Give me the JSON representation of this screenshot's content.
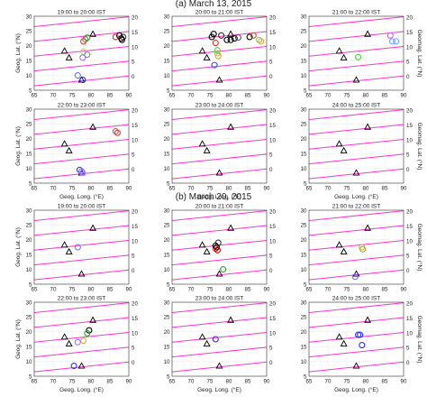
{
  "sections": [
    {
      "title": "(a) March 13, 2015"
    },
    {
      "title": "(b) March 20, 2015"
    }
  ],
  "chart_data": {
    "type": "scatter",
    "xlabel": "Geog. Long. (°E)",
    "ylabel": "Geog. Lat. (°N)",
    "y2label": "Geomag. Lat. (°N)",
    "xlim": [
      65,
      90
    ],
    "ylim": [
      5,
      30
    ],
    "xticks": [
      65,
      70,
      75,
      80,
      85,
      90
    ],
    "yticks": [
      5,
      10,
      15,
      20,
      25,
      30
    ],
    "y2ticks": [
      0,
      5,
      10,
      15,
      20
    ],
    "grid": true,
    "geomag_lines": {
      "color": "#ff33cc",
      "lines": [
        {
          "label": 0,
          "x": [
            65,
            90
          ],
          "y": [
            6.5,
            9.8
          ]
        },
        {
          "label": 5,
          "x": [
            65,
            90
          ],
          "y": [
            11.5,
            14.8
          ]
        },
        {
          "label": 10,
          "x": [
            65,
            90
          ],
          "y": [
            16.5,
            19.8
          ]
        },
        {
          "label": 15,
          "x": [
            65,
            90
          ],
          "y": [
            21.5,
            24.8
          ]
        },
        {
          "label": 20,
          "x": [
            65,
            90
          ],
          "y": [
            26.5,
            29.8
          ]
        }
      ]
    },
    "stations": [
      {
        "x": 80.5,
        "y": 24.0
      },
      {
        "x": 73.0,
        "y": 18.3
      },
      {
        "x": 74.2,
        "y": 16.0
      },
      {
        "x": 77.5,
        "y": 8.5
      }
    ],
    "panels": [
      {
        "section": 0,
        "title": "19:00 to 20:00 IST",
        "points": [
          {
            "x": 78.0,
            "y": 21.5,
            "c": "#e03030"
          },
          {
            "x": 78.5,
            "y": 22.2,
            "c": "#a07040"
          },
          {
            "x": 79.0,
            "y": 22.8,
            "c": "#2aa02a"
          },
          {
            "x": 78.0,
            "y": 18.0,
            "c": "#a0e060"
          },
          {
            "x": 79.0,
            "y": 17.0,
            "c": "#60a060"
          },
          {
            "x": 77.8,
            "y": 16.0,
            "c": "#a070ff"
          },
          {
            "x": 76.5,
            "y": 10.0,
            "c": "#7070ff"
          },
          {
            "x": 77.8,
            "y": 8.5,
            "c": "#2020ff"
          },
          {
            "x": 88.0,
            "y": 22.5,
            "c": "#000000"
          },
          {
            "x": 88.5,
            "y": 23.0,
            "c": "#333333"
          },
          {
            "x": 87.5,
            "y": 23.5,
            "c": "#000000"
          },
          {
            "x": 86.5,
            "y": 23.0,
            "c": "#cc3030"
          },
          {
            "x": 88.2,
            "y": 22.0,
            "c": "#000000"
          }
        ]
      },
      {
        "section": 0,
        "title": "20:00 to 21:00 IST",
        "points": [
          {
            "x": 75.5,
            "y": 23.0,
            "c": "#000000"
          },
          {
            "x": 76.0,
            "y": 24.0,
            "c": "#000000"
          },
          {
            "x": 78.0,
            "y": 23.5,
            "c": "#333333"
          },
          {
            "x": 79.5,
            "y": 22.0,
            "c": "#000000"
          },
          {
            "x": 80.5,
            "y": 22.0,
            "c": "#000000"
          },
          {
            "x": 81.5,
            "y": 22.5,
            "c": "#000000"
          },
          {
            "x": 82.5,
            "y": 22.8,
            "c": "#555555"
          },
          {
            "x": 76.5,
            "y": 21.0,
            "c": "#e03030"
          },
          {
            "x": 77.0,
            "y": 17.5,
            "c": "#a0d040"
          },
          {
            "x": 77.2,
            "y": 16.5,
            "c": "#e0a040"
          },
          {
            "x": 77.0,
            "y": 18.5,
            "c": "#70c070"
          },
          {
            "x": 76.2,
            "y": 13.5,
            "c": "#3050e0"
          },
          {
            "x": 85.5,
            "y": 23.0,
            "c": "#000000"
          },
          {
            "x": 86.5,
            "y": 23.5,
            "c": "#a06030"
          },
          {
            "x": 88.0,
            "y": 22.0,
            "c": "#80c060"
          },
          {
            "x": 88.5,
            "y": 21.5,
            "c": "#f0a030"
          }
        ]
      },
      {
        "section": 0,
        "title": "21:00 to 22:00 IST",
        "points": [
          {
            "x": 88.0,
            "y": 21.5,
            "c": "#70a0ff"
          },
          {
            "x": 87.0,
            "y": 21.5,
            "c": "#70a0ff"
          },
          {
            "x": 86.5,
            "y": 23.5,
            "c": "#b070ff"
          },
          {
            "x": 78.0,
            "y": 16.2,
            "c": "#40d040"
          }
        ]
      },
      {
        "section": 0,
        "title": "22:00 to 23:00 IST",
        "points": [
          {
            "x": 87.0,
            "y": 22.0,
            "c": "#e03030"
          },
          {
            "x": 86.5,
            "y": 22.5,
            "c": "#e05050"
          },
          {
            "x": 77.0,
            "y": 9.5,
            "c": "#3030ff"
          },
          {
            "x": 77.5,
            "y": 9.0,
            "c": "#7070ff"
          },
          {
            "x": 77.8,
            "y": 8.5,
            "c": "#a070ff"
          }
        ]
      },
      {
        "section": 0,
        "title": "23:00 to 24:00 IST",
        "points": []
      },
      {
        "section": 0,
        "title": "24:00 to 25:00 IST",
        "points": []
      },
      {
        "section": 1,
        "title": "19:00 to 20:00 IST",
        "points": [
          {
            "x": 76.5,
            "y": 17.5,
            "c": "#7070ff"
          }
        ]
      },
      {
        "section": 1,
        "title": "20:00 to 21:00 IST",
        "points": [
          {
            "x": 76.5,
            "y": 17.0,
            "c": "#e03030"
          },
          {
            "x": 76.8,
            "y": 17.5,
            "c": "#000000"
          },
          {
            "x": 77.0,
            "y": 16.5,
            "c": "#cc0000"
          },
          {
            "x": 76.5,
            "y": 18.0,
            "c": "#000000"
          },
          {
            "x": 77.2,
            "y": 19.0,
            "c": "#333333"
          },
          {
            "x": 78.5,
            "y": 10.0,
            "c": "#2aa02a"
          }
        ]
      },
      {
        "section": 1,
        "title": "21:00 to 22:00 IST",
        "points": [
          {
            "x": 79.0,
            "y": 17.5,
            "c": "#f0a030"
          },
          {
            "x": 79.2,
            "y": 16.8,
            "c": "#80c040"
          },
          {
            "x": 77.2,
            "y": 7.5,
            "c": "#7070ff"
          }
        ]
      },
      {
        "section": 1,
        "title": "22:00 to 23:00 IST",
        "points": [
          {
            "x": 79.5,
            "y": 20.5,
            "c": "#000000"
          },
          {
            "x": 79.0,
            "y": 19.5,
            "c": "#2aa02a"
          },
          {
            "x": 78.0,
            "y": 17.0,
            "c": "#f0a030"
          },
          {
            "x": 76.5,
            "y": 16.5,
            "c": "#a070ff"
          },
          {
            "x": 75.5,
            "y": 8.5,
            "c": "#3030ff"
          }
        ]
      },
      {
        "section": 1,
        "title": "23:00 to 24:00 IST",
        "points": [
          {
            "x": 76.5,
            "y": 17.5,
            "c": "#3030ff"
          }
        ]
      },
      {
        "section": 1,
        "title": "24:00 to 25:00 IST",
        "points": [
          {
            "x": 78.0,
            "y": 19.0,
            "c": "#3030ff"
          },
          {
            "x": 78.5,
            "y": 19.0,
            "c": "#3030ff"
          },
          {
            "x": 79.0,
            "y": 15.5,
            "c": "#3030ff"
          }
        ]
      }
    ]
  }
}
